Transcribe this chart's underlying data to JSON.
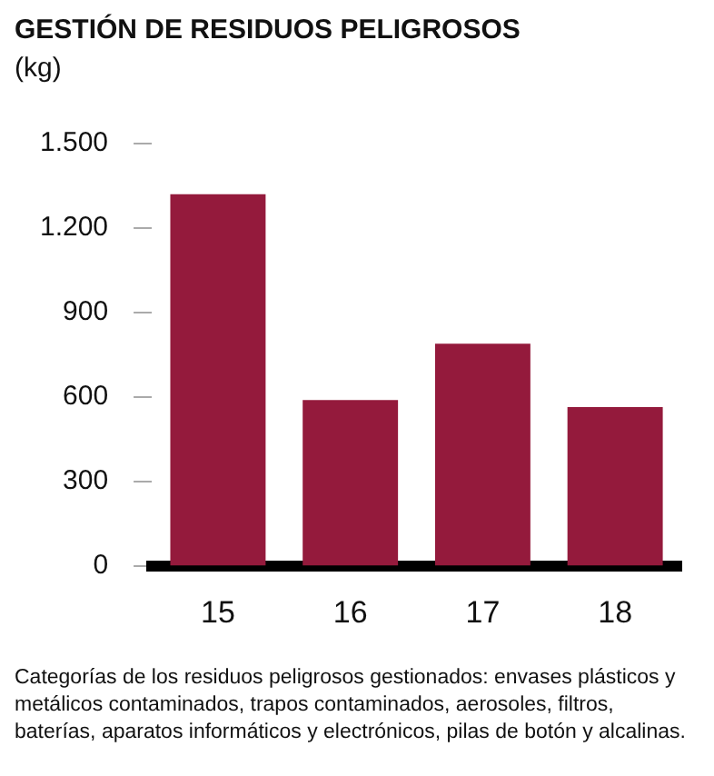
{
  "chart_data": {
    "type": "bar",
    "title": "GESTIÓN DE RESIDUOS PELIGROSOS",
    "ylabel": "(kg)",
    "categories": [
      "15",
      "16",
      "17",
      "18"
    ],
    "values": [
      1320,
      590,
      790,
      565
    ],
    "color": "#941a3c",
    "ylim": [
      0,
      1500
    ],
    "yticks": [
      0,
      {
        "value": 300,
        "label": "300"
      },
      {
        "value": 600,
        "label": "600"
      },
      {
        "value": 900,
        "label": "900"
      },
      {
        "value": 1200,
        "label": "1.200"
      },
      {
        "value": 1500,
        "label": "1.500"
      }
    ],
    "grid": false,
    "annotations": [
      "Categorías de los residuos peligrosos gestionados: envases plásticos y metálicos contaminados, trapos contaminados, aerosoles, filtros, baterías, aparatos informáticos y electrónicos, pilas de botón y alcalinas."
    ]
  }
}
